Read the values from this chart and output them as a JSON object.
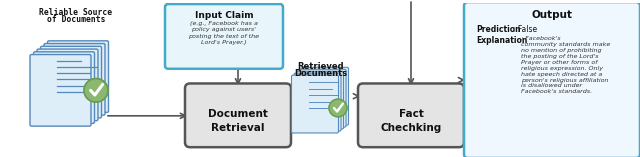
{
  "figsize": [
    6.4,
    1.57
  ],
  "dpi": 100,
  "bg_color": "#ffffff",
  "doc_stack_color": "#ddeef8",
  "doc_border_color": "#5588bb",
  "check_circle_color": "#8ab870",
  "check_border_color": "#6a9a50",
  "input_box_color": "#e8f6fc",
  "input_box_border": "#44aacc",
  "process_box_color": "#e4e4e4",
  "process_box_border": "#555555",
  "output_box_color": "#f0f8ff",
  "output_box_border": "#44aacc",
  "arrow_color": "#555555",
  "title_reliable_line1": "Reliable Source",
  "title_reliable_line2": "of Documents",
  "title_input": "Input Claim",
  "input_text": "(e.g., Facebook has a\npolicy against users'\nposting the text of the\nLord's Prayer.)",
  "title_retrieved_line1": "Retrieved",
  "title_retrieved_line2": "Documents",
  "title_doc_retrieval_line1": "Document",
  "title_doc_retrieval_line2": "Retrieval",
  "title_fact_checking_line1": "Fact",
  "title_fact_checking_line2": "Chechking",
  "title_output": "Output",
  "pred_label": "Prediction",
  "pred_value": ": False",
  "exp_label": "Explanation",
  "exp_text": ": Facebook's\ncommunity standards make\nno mention of prohibiting\nthe posting of the Lord's\nPrayer or other forms of\nreligious expression. Only\nhate speech directed at a\nperson's religious affiliation\nis disallowed under\nFacebook's standards."
}
